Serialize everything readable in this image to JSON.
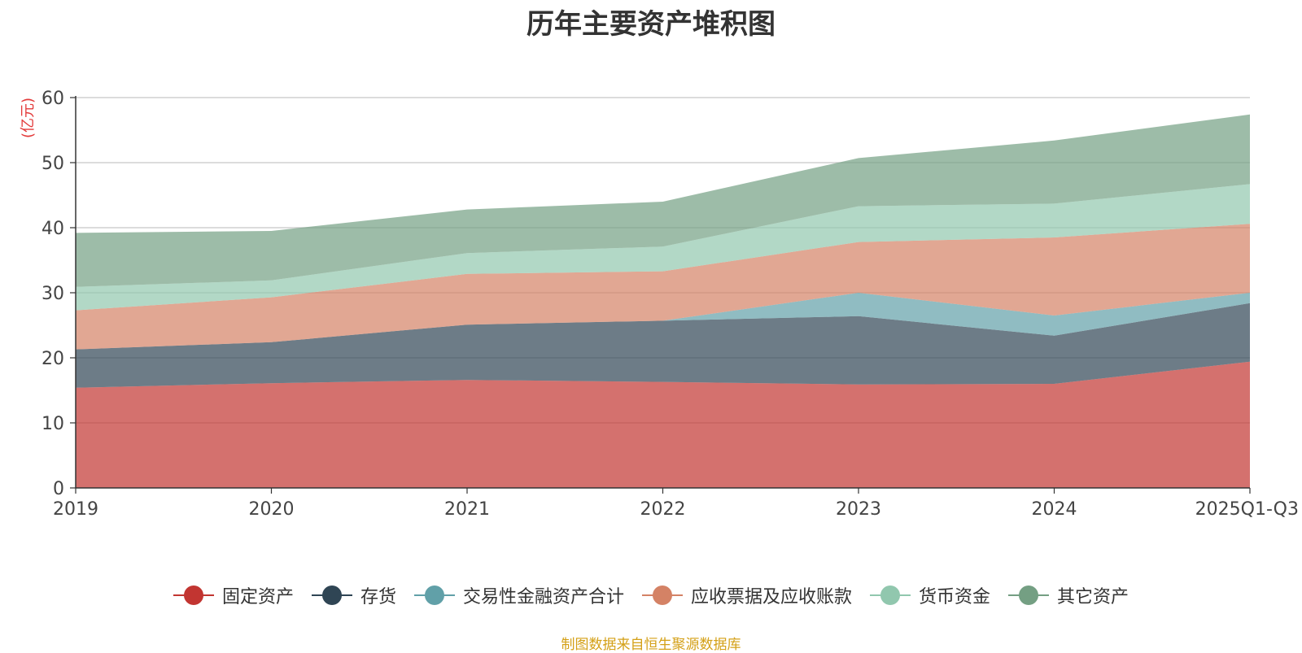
{
  "chart_data": {
    "type": "area",
    "stacked": true,
    "title": "历年主要资产堆积图",
    "ylabel": "(亿元)",
    "xlabel": "",
    "ylim": [
      0,
      60
    ],
    "yticks": [
      0,
      10,
      20,
      30,
      40,
      50,
      60
    ],
    "grid": true,
    "categories": [
      "2019",
      "2020",
      "2021",
      "2022",
      "2023",
      "2024",
      "2025Q1-Q3"
    ],
    "series": [
      {
        "name": "固定资产",
        "color": "#c23531",
        "values": [
          15.4,
          16.1,
          16.6,
          16.3,
          15.9,
          16.0,
          19.4
        ]
      },
      {
        "name": "存货",
        "color": "#2f4554",
        "values": [
          5.9,
          6.3,
          8.5,
          9.4,
          10.5,
          7.4,
          9.0
        ]
      },
      {
        "name": "交易性金融资产合计",
        "color": "#61a0a8",
        "values": [
          0.0,
          0.0,
          0.0,
          0.0,
          3.6,
          3.1,
          1.6
        ]
      },
      {
        "name": "应收票据及应收账款",
        "color": "#d48265",
        "values": [
          6.0,
          6.9,
          7.8,
          7.6,
          7.8,
          12.0,
          10.6
        ]
      },
      {
        "name": "货币资金",
        "color": "#91c7ae",
        "values": [
          3.6,
          2.6,
          3.2,
          3.8,
          5.5,
          5.2,
          6.1
        ]
      },
      {
        "name": "其它资产",
        "color": "#749f83",
        "values": [
          8.3,
          7.6,
          6.7,
          6.9,
          7.4,
          9.7,
          10.7
        ]
      }
    ]
  },
  "footnote": "制图数据来自恒生聚源数据库"
}
